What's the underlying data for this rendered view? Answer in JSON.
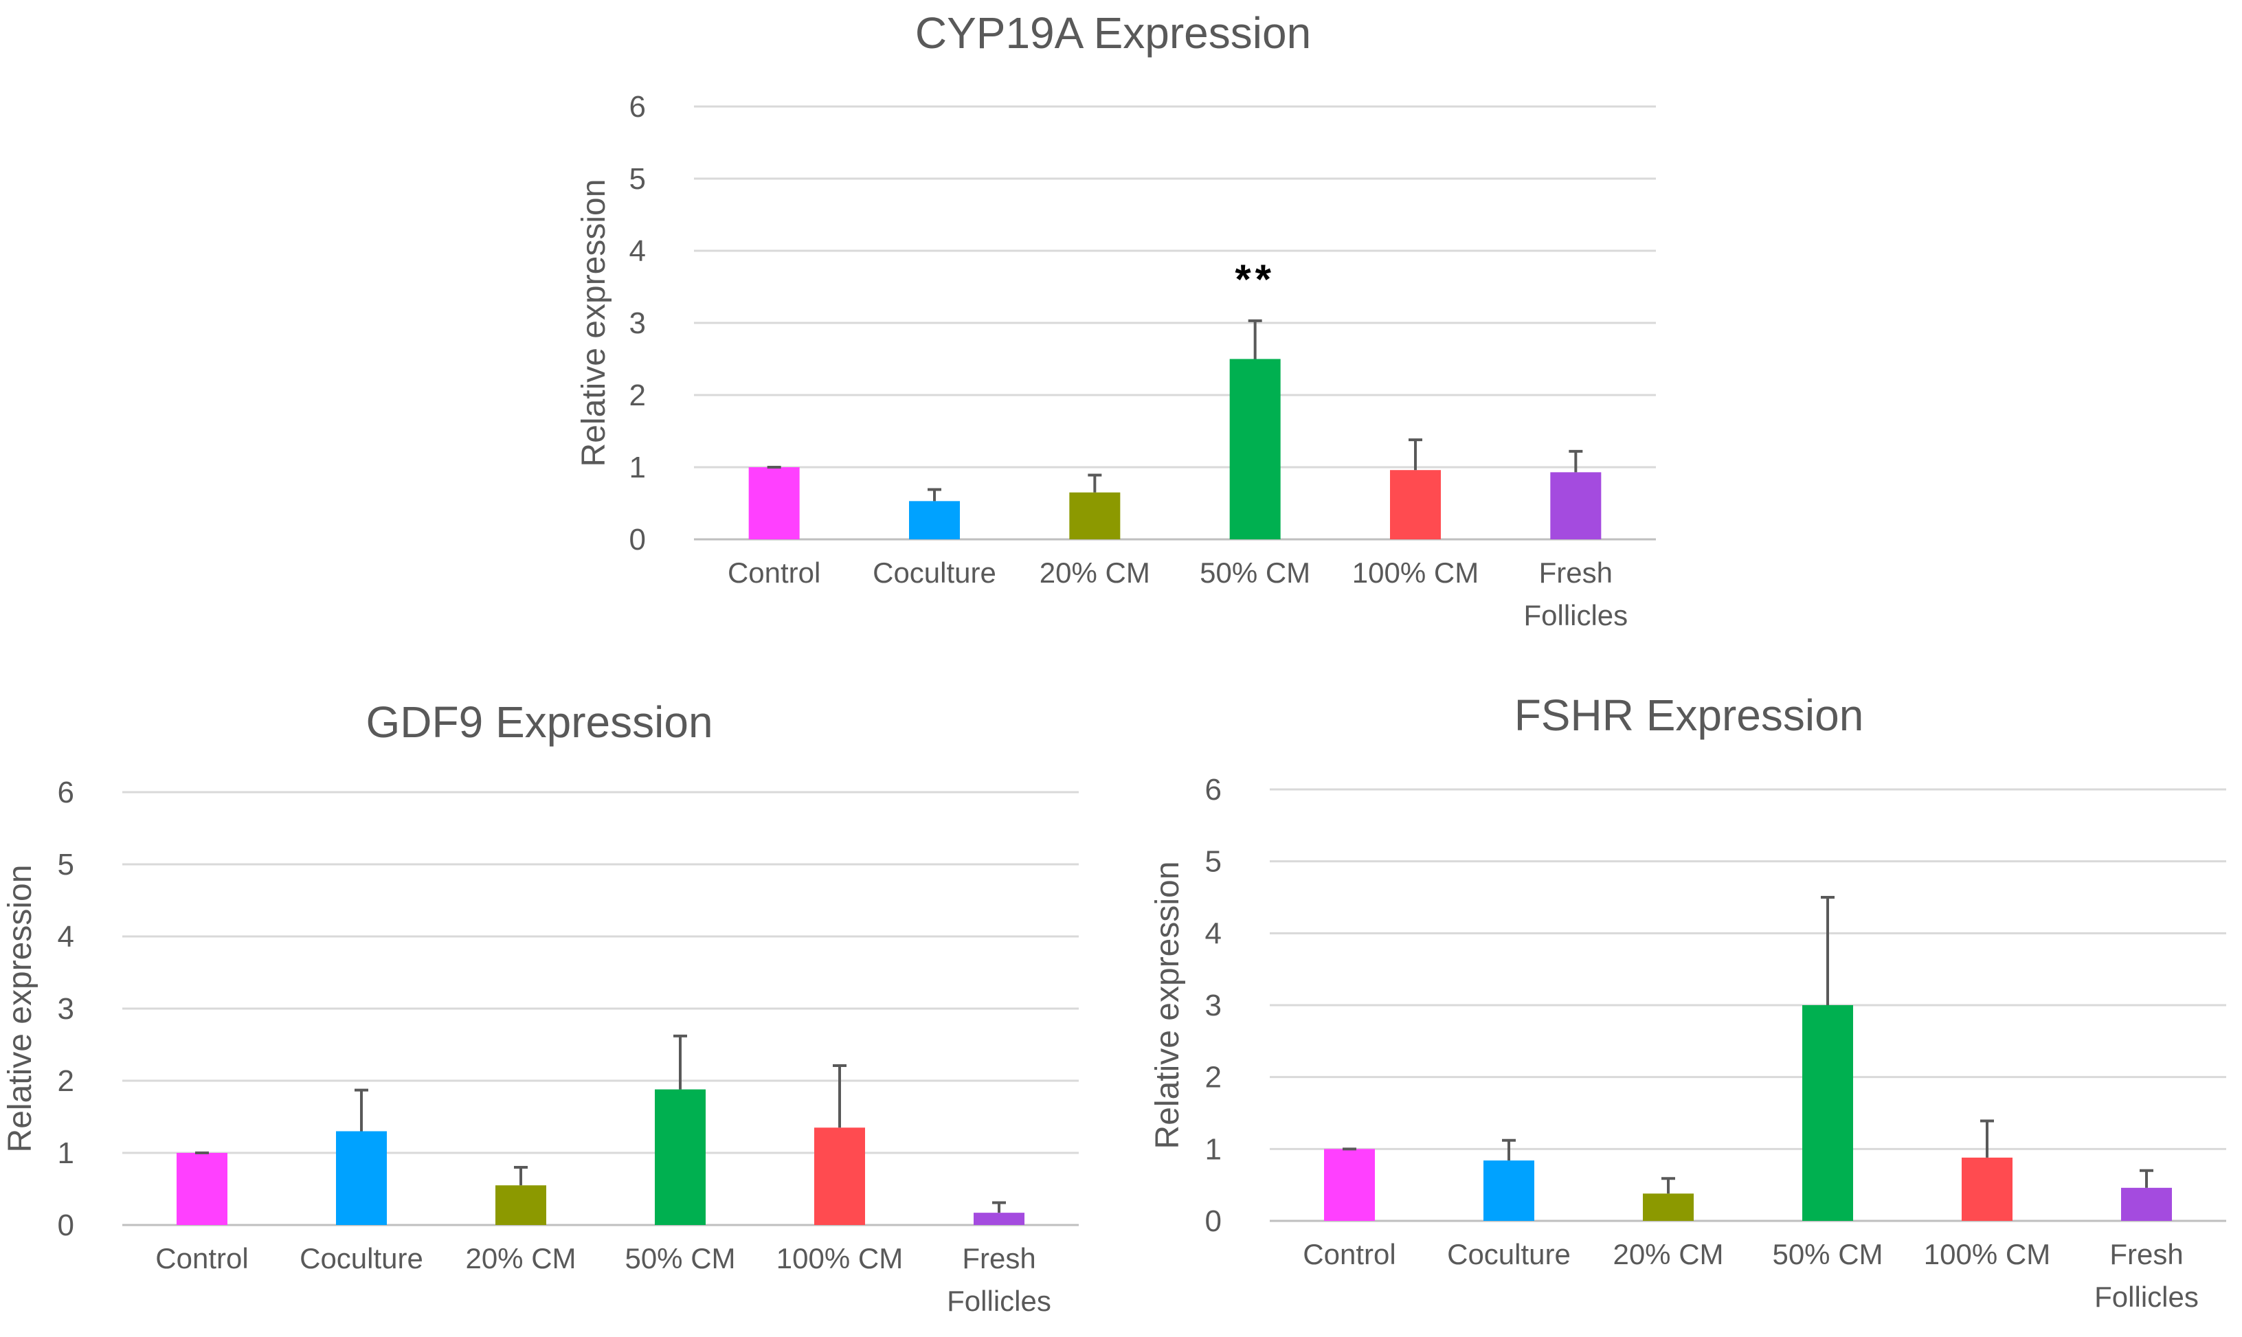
{
  "chart_data": [
    {
      "type": "bar",
      "title": "CYP19A Expression",
      "ylabel": "Relative expression",
      "xlabel": "",
      "ylim": [
        0,
        6
      ],
      "yticks": [
        0,
        1,
        2,
        3,
        4,
        5,
        6
      ],
      "grid": true,
      "categories": [
        "Control",
        "Coculture",
        "20% CM",
        "50% CM",
        "100% CM",
        "Fresh Follicles"
      ],
      "values": [
        1.0,
        0.53,
        0.65,
        2.5,
        0.96,
        0.93
      ],
      "error_upper": [
        0.0,
        0.16,
        0.24,
        0.53,
        0.42,
        0.29
      ],
      "colors": [
        "#ff40ff",
        "#00a2ff",
        "#8c9900",
        "#00b050",
        "#ff4b50",
        "#a44bdf"
      ],
      "annotations": [
        {
          "category": "50% CM",
          "text": "**"
        }
      ]
    },
    {
      "type": "bar",
      "title": "GDF9 Expression",
      "ylabel": "Relative expression",
      "xlabel": "",
      "ylim": [
        0,
        6
      ],
      "yticks": [
        0,
        1,
        2,
        3,
        4,
        5,
        6
      ],
      "grid": true,
      "categories": [
        "Control",
        "Coculture",
        "20% CM",
        "50% CM",
        "100% CM",
        "Fresh Follicles"
      ],
      "values": [
        1.0,
        1.3,
        0.55,
        1.88,
        1.35,
        0.17
      ],
      "error_upper": [
        0.0,
        0.57,
        0.25,
        0.74,
        0.86,
        0.14
      ],
      "colors": [
        "#ff40ff",
        "#00a2ff",
        "#8c9900",
        "#00b050",
        "#ff4b50",
        "#a44bdf"
      ],
      "annotations": []
    },
    {
      "type": "bar",
      "title": "FSHR Expression",
      "ylabel": "Relative expression",
      "xlabel": "",
      "ylim": [
        0,
        6
      ],
      "yticks": [
        0,
        1,
        2,
        3,
        4,
        5,
        6
      ],
      "grid": true,
      "categories": [
        "Control",
        "Coculture",
        "20% CM",
        "50% CM",
        "100% CM",
        "Fresh Follicles"
      ],
      "values": [
        1.0,
        0.84,
        0.38,
        3.0,
        0.88,
        0.46
      ],
      "error_upper": [
        0.0,
        0.28,
        0.21,
        1.5,
        0.51,
        0.24
      ],
      "colors": [
        "#ff40ff",
        "#00a2ff",
        "#8c9900",
        "#00b050",
        "#ff4b50",
        "#a44bdf"
      ],
      "annotations": []
    }
  ]
}
